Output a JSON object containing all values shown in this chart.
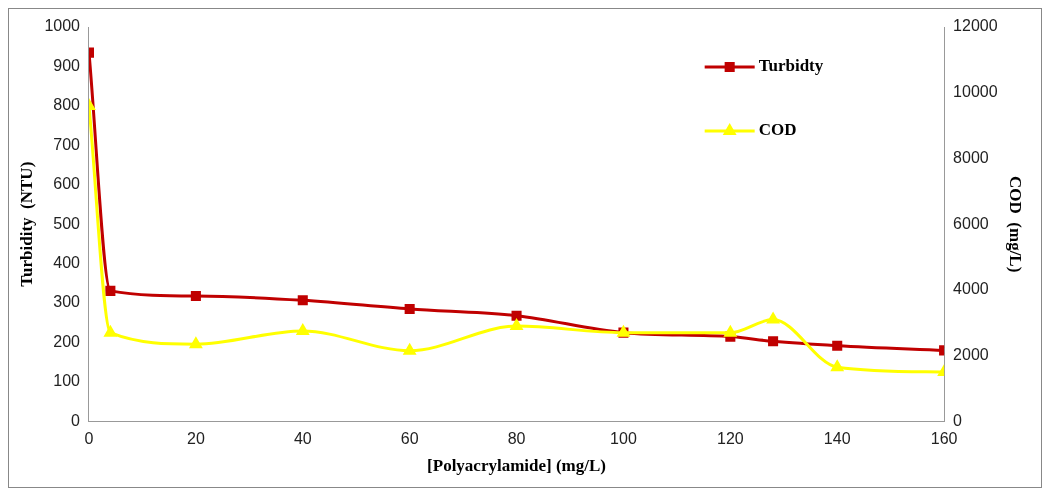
{
  "chart_data": {
    "type": "line",
    "xlabel": "[Polyacrylamide] (mg/L)",
    "ylabel": "Turbidity  (NTU)",
    "y2label": "COD  (mg/L)",
    "x": [
      0,
      4,
      20,
      40,
      60,
      80,
      100,
      120,
      128,
      140,
      160
    ],
    "series": [
      {
        "name": "Turbidty",
        "color": "#c00000",
        "marker": "square",
        "values": [
          935,
          331,
          318,
          307,
          285,
          268,
          225,
          215,
          203,
          192,
          180
        ]
      },
      {
        "name": "COD",
        "color": "#ffff00",
        "marker": "triangle",
        "axis": "y2",
        "values": [
          9600,
          2700,
          2350,
          2750,
          2150,
          2900,
          2700,
          2700,
          3100,
          1650,
          1500
        ]
      }
    ],
    "xlim": [
      0,
      160
    ],
    "xticks": [
      0,
      20,
      40,
      60,
      80,
      100,
      120,
      140,
      160
    ],
    "ylim": [
      0,
      1000
    ],
    "yticks": [
      0,
      100,
      200,
      300,
      400,
      500,
      600,
      700,
      800,
      900,
      1000
    ],
    "y2lim": [
      0,
      12000
    ],
    "y2ticks": [
      0,
      2000,
      4000,
      6000,
      8000,
      10000,
      12000
    ],
    "grid": false,
    "legend": "top right"
  }
}
